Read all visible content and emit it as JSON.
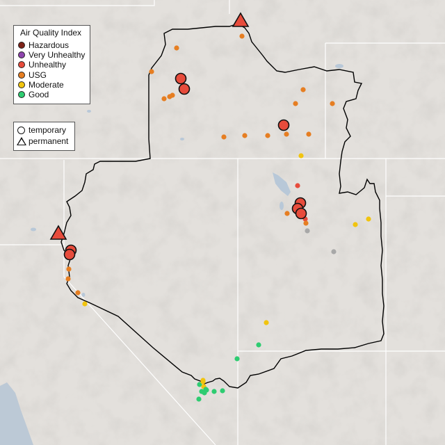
{
  "legend": {
    "title": "Air Quality Index",
    "categories": [
      {
        "label": "Hazardous",
        "color": "#7e2218"
      },
      {
        "label": "Very Unhealthy",
        "color": "#8e44ad"
      },
      {
        "label": "Unhealthy",
        "color": "#e74c3c"
      },
      {
        "label": "USG",
        "color": "#e67e22"
      },
      {
        "label": "Moderate",
        "color": "#f1c40f"
      },
      {
        "label": "Good",
        "color": "#2ecc71"
      }
    ]
  },
  "monitor_types": [
    {
      "label": "temporary",
      "symbol": "circle"
    },
    {
      "label": "permanent",
      "symbol": "triangle"
    }
  ],
  "colors": {
    "land": "#e3e0dc",
    "ocean": "#bcc9d6",
    "state_lines": "#ffffff",
    "boundary": "#000000",
    "no_data_marker": "#a8a8a8"
  }
}
